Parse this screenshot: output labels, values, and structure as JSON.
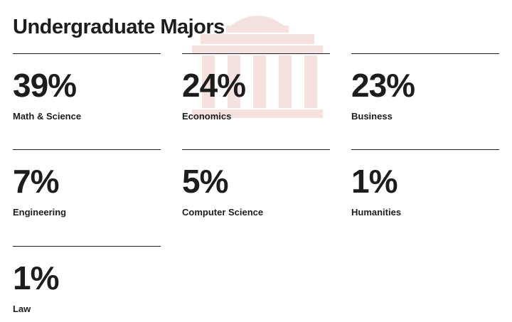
{
  "title": "Undergraduate Majors",
  "watermark_icon": "building-columns-icon",
  "colors": {
    "text": "#1d1d1d",
    "watermark": "#f6e1e1"
  },
  "stats": [
    {
      "value": "39%",
      "label": "Math & Science"
    },
    {
      "value": "24%",
      "label": "Economics"
    },
    {
      "value": "23%",
      "label": "Business"
    },
    {
      "value": "7%",
      "label": "Engineering"
    },
    {
      "value": "5%",
      "label": "Computer Science"
    },
    {
      "value": "1%",
      "label": "Humanities"
    },
    {
      "value": "1%",
      "label": "Law"
    }
  ]
}
